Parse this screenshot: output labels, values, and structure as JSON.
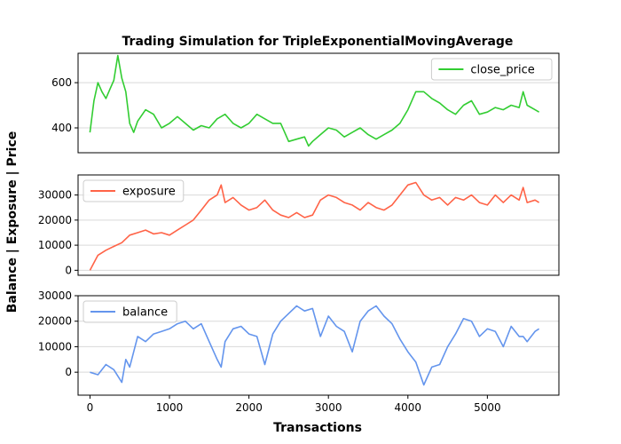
{
  "chart_data": {
    "type": "line",
    "title": "Trading Simulation for TripleExponentialMovingAverage",
    "xlabel": "Transactions",
    "ylabel": "Balance | Exposure | Price",
    "xlim": [
      -150,
      5900
    ],
    "x_ticks": [
      0,
      1000,
      2000,
      3000,
      4000,
      5000
    ],
    "x_tick_labels": [
      "0",
      "1000",
      "2000",
      "3000",
      "4000",
      "5000"
    ],
    "grid": "horizontal",
    "panels": [
      {
        "series_name": "close_price",
        "color": "#32cd32",
        "legend_position": "top-right",
        "ylim": [
          290,
          730
        ],
        "y_ticks": [
          400,
          600
        ],
        "y_tick_labels": [
          "400",
          "600"
        ],
        "x": [
          0,
          50,
          100,
          150,
          200,
          250,
          300,
          350,
          400,
          450,
          500,
          550,
          600,
          700,
          800,
          900,
          1000,
          1100,
          1200,
          1300,
          1400,
          1500,
          1600,
          1700,
          1800,
          1900,
          2000,
          2100,
          2200,
          2300,
          2400,
          2450,
          2500,
          2600,
          2700,
          2750,
          2800,
          2900,
          3000,
          3100,
          3200,
          3300,
          3400,
          3500,
          3600,
          3700,
          3800,
          3900,
          4000,
          4100,
          4200,
          4300,
          4400,
          4500,
          4600,
          4700,
          4800,
          4900,
          5000,
          5100,
          5200,
          5300,
          5400,
          5450,
          5500,
          5600,
          5650
        ],
        "values": [
          380,
          520,
          600,
          560,
          530,
          570,
          610,
          720,
          620,
          560,
          420,
          380,
          430,
          480,
          460,
          400,
          420,
          450,
          420,
          390,
          410,
          400,
          440,
          460,
          420,
          400,
          420,
          460,
          440,
          420,
          420,
          380,
          340,
          350,
          360,
          320,
          340,
          370,
          400,
          390,
          360,
          380,
          400,
          370,
          350,
          370,
          390,
          420,
          480,
          560,
          560,
          530,
          510,
          480,
          460,
          500,
          520,
          460,
          470,
          490,
          480,
          500,
          490,
          560,
          500,
          480,
          470
        ]
      },
      {
        "series_name": "exposure",
        "color": "#ff6347",
        "legend_position": "top-left",
        "ylim": [
          -2000,
          38000
        ],
        "y_ticks": [
          0,
          10000,
          20000,
          30000
        ],
        "y_tick_labels": [
          "0",
          "10000",
          "20000",
          "30000"
        ],
        "x": [
          0,
          100,
          200,
          300,
          400,
          500,
          600,
          700,
          800,
          900,
          1000,
          1100,
          1200,
          1300,
          1400,
          1500,
          1600,
          1650,
          1700,
          1800,
          1900,
          2000,
          2100,
          2200,
          2300,
          2400,
          2500,
          2600,
          2700,
          2800,
          2900,
          3000,
          3100,
          3200,
          3300,
          3400,
          3500,
          3600,
          3700,
          3800,
          3900,
          4000,
          4100,
          4200,
          4300,
          4400,
          4500,
          4600,
          4700,
          4800,
          4900,
          5000,
          5100,
          5200,
          5300,
          5400,
          5450,
          5500,
          5600,
          5650
        ],
        "values": [
          0,
          6000,
          8000,
          9500,
          11000,
          14000,
          15000,
          16000,
          14500,
          15000,
          14000,
          16000,
          18000,
          20000,
          24000,
          28000,
          30000,
          34000,
          27000,
          29000,
          26000,
          24000,
          25000,
          28000,
          24000,
          22000,
          21000,
          23000,
          21000,
          22000,
          28000,
          30000,
          29000,
          27000,
          26000,
          24000,
          27000,
          25000,
          24000,
          26000,
          30000,
          34000,
          35000,
          30000,
          28000,
          29000,
          26000,
          29000,
          28000,
          30000,
          27000,
          26000,
          30000,
          27000,
          30000,
          28000,
          33000,
          27000,
          28000,
          27000
        ]
      },
      {
        "series_name": "balance",
        "color": "#6495ed",
        "legend_position": "top-left",
        "ylim": [
          -9000,
          30000
        ],
        "y_ticks": [
          0,
          10000,
          20000,
          30000
        ],
        "y_tick_labels": [
          "0",
          "10000",
          "20000",
          "30000"
        ],
        "x": [
          0,
          100,
          200,
          300,
          400,
          450,
          500,
          600,
          700,
          800,
          900,
          1000,
          1100,
          1200,
          1300,
          1400,
          1500,
          1600,
          1650,
          1700,
          1800,
          1900,
          2000,
          2100,
          2200,
          2300,
          2400,
          2500,
          2600,
          2700,
          2800,
          2900,
          3000,
          3100,
          3200,
          3300,
          3400,
          3500,
          3600,
          3700,
          3800,
          3900,
          4000,
          4100,
          4200,
          4300,
          4400,
          4500,
          4600,
          4700,
          4800,
          4900,
          5000,
          5100,
          5200,
          5300,
          5400,
          5450,
          5500,
          5600,
          5650
        ],
        "values": [
          0,
          -1000,
          3000,
          1000,
          -4000,
          5000,
          2000,
          14000,
          12000,
          15000,
          16000,
          17000,
          19000,
          20000,
          17000,
          19000,
          12000,
          5000,
          2000,
          12000,
          17000,
          18000,
          15000,
          14000,
          3000,
          15000,
          20000,
          23000,
          26000,
          24000,
          25000,
          14000,
          22000,
          18000,
          16000,
          8000,
          20000,
          24000,
          26000,
          22000,
          19000,
          13000,
          8000,
          4000,
          -5000,
          2000,
          3000,
          10000,
          15000,
          21000,
          20000,
          14000,
          17000,
          16000,
          10000,
          18000,
          14000,
          14000,
          12000,
          16000,
          17000
        ]
      }
    ]
  }
}
